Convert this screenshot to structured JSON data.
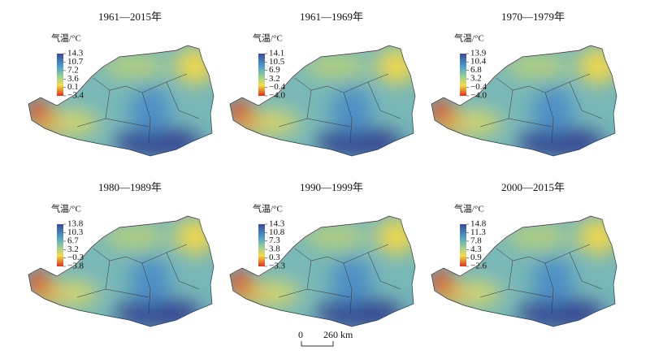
{
  "panels": [
    {
      "title": "1961—2015年",
      "legend_title": "气温/°C",
      "ticks": [
        14.3,
        10.7,
        7.2,
        3.6,
        0.1,
        {
          "value": -3.4,
          "label": "−3.4"
        }
      ]
    },
    {
      "title": "1961—1969年",
      "legend_title": "气温/°C",
      "ticks": [
        14.1,
        10.5,
        6.9,
        3.2,
        {
          "value": -0.4,
          "label": "−0.4"
        },
        {
          "value": -4.0,
          "label": "−4.0"
        }
      ]
    },
    {
      "title": "1970—1979年",
      "legend_title": "气温/°C",
      "ticks": [
        13.9,
        10.4,
        6.8,
        3.2,
        {
          "value": -0.4,
          "label": "−0.4"
        },
        {
          "value": -4.0,
          "label": "−4.0"
        }
      ]
    },
    {
      "title": "1980—1989年",
      "legend_title": "气温/°C",
      "ticks": [
        13.8,
        10.3,
        6.7,
        3.2,
        {
          "value": -0.3,
          "label": "−0.3"
        },
        {
          "value": -3.8,
          "label": "−3.8"
        }
      ]
    },
    {
      "title": "1990—1999年",
      "legend_title": "气温/°C",
      "ticks": [
        14.3,
        10.8,
        7.3,
        3.8,
        0.3,
        {
          "value": -3.3,
          "label": "−3.3"
        }
      ]
    },
    {
      "title": "2000—2015年",
      "legend_title": "气温/°C",
      "ticks": [
        14.8,
        11.3,
        7.8,
        4.3,
        0.9,
        {
          "value": -2.6,
          "label": "−2.6"
        }
      ]
    }
  ],
  "scale_bar": {
    "start": "0",
    "end": "260 km"
  }
}
